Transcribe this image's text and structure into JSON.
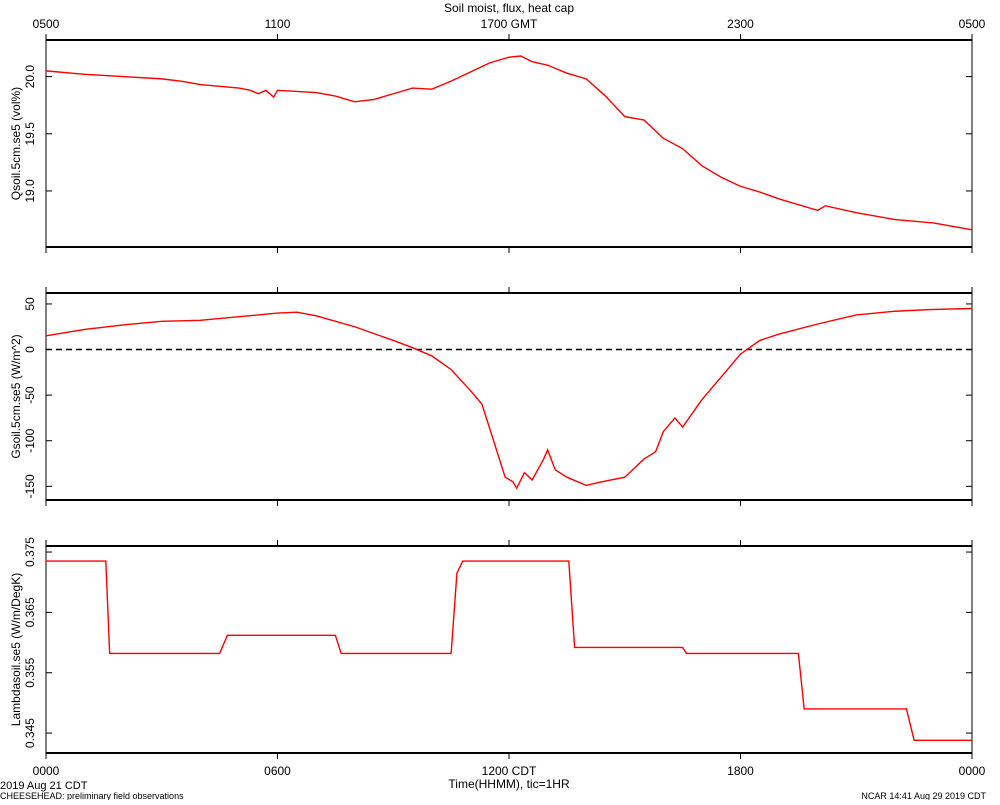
{
  "title": "Soil moist, flux, heat cap",
  "footer": [
    "2019 Aug 21 CDT",
    "CHEESEHEAD: preliminary field observations",
    "NCAR 14:41 Aug 29 2019 CDT"
  ],
  "chart_data": [
    {
      "type": "line",
      "ylabel": "Qsoil.5cm.se5 (vol%)",
      "xlim": [
        0,
        24
      ],
      "ylim": [
        18.51,
        20.32
      ],
      "yticks": [
        {
          "value": 20,
          "label": "20.0"
        },
        {
          "value": 19.5,
          "label": "19.5"
        },
        {
          "value": 19,
          "label": "19.0"
        }
      ],
      "x2ticks": [
        {
          "value": 0,
          "label": "0500"
        },
        {
          "value": 6,
          "label": "1100"
        },
        {
          "value": 12,
          "label": "1700 GMT"
        },
        {
          "value": 18,
          "label": "2300"
        },
        {
          "value": 24,
          "label": "0500"
        }
      ],
      "series": [
        {
          "color": "#ff0000",
          "x": [
            0,
            1,
            2,
            3,
            3.5,
            4,
            5,
            5.3,
            5.5,
            5.7,
            5.9,
            6,
            7,
            7.5,
            8,
            8.5,
            9,
            9.5,
            10,
            10.5,
            11,
            11.5,
            12,
            12.3,
            12.6,
            13,
            13.5,
            14,
            14.5,
            15,
            15.5,
            16,
            16.5,
            17,
            17.5,
            18,
            18.5,
            19,
            20,
            20.2,
            21,
            22,
            23,
            24
          ],
          "values": [
            20.05,
            20.02,
            20.0,
            19.98,
            19.96,
            19.93,
            19.9,
            19.88,
            19.85,
            19.88,
            19.82,
            19.88,
            19.86,
            19.83,
            19.78,
            19.8,
            19.85,
            19.9,
            19.89,
            19.96,
            20.04,
            20.12,
            20.17,
            20.18,
            20.13,
            20.1,
            20.03,
            19.98,
            19.83,
            19.65,
            19.62,
            19.46,
            19.37,
            19.22,
            19.12,
            19.04,
            18.99,
            18.93,
            18.83,
            18.87,
            18.81,
            18.75,
            18.72,
            18.66
          ]
        }
      ]
    },
    {
      "type": "line",
      "ylabel": "Gsoil.5cm.se5 (W/m^2)",
      "xlim": [
        0,
        24
      ],
      "ylim": [
        -165,
        62
      ],
      "yticks": [
        50,
        0,
        -50,
        -100,
        -150
      ],
      "reference_line": 0,
      "series": [
        {
          "color": "#ff0000",
          "x": [
            0,
            1,
            2,
            3,
            4,
            5,
            6,
            6.5,
            7,
            8,
            9,
            9.5,
            10,
            10.5,
            11,
            11.3,
            11.6,
            11.9,
            12.1,
            12.2,
            12.4,
            12.6,
            12.9,
            13,
            13.2,
            13.5,
            14,
            14.4,
            15,
            15.5,
            15.8,
            16,
            16.3,
            16.5,
            17,
            17.5,
            18,
            18.5,
            19,
            20,
            21,
            22,
            23,
            24
          ],
          "values": [
            15,
            22,
            27,
            31,
            32,
            36,
            40,
            41,
            37,
            25,
            10,
            2,
            -7,
            -22,
            -45,
            -60,
            -100,
            -140,
            -145,
            -152,
            -135,
            -143,
            -120,
            -110,
            -132,
            -140,
            -149,
            -145,
            -140,
            -120,
            -112,
            -90,
            -75,
            -85,
            -55,
            -30,
            -5,
            10,
            17,
            28,
            38,
            42,
            44,
            45
          ]
        }
      ]
    },
    {
      "type": "line",
      "ylabel": "Lambdasoil.se5 (W/m/DegK)",
      "xlabel": "Time(HHMM), tic=1HR",
      "xlim": [
        0,
        24
      ],
      "ylim": [
        0.3417,
        0.376
      ],
      "yticks": [
        0.375,
        0.365,
        0.355,
        0.345
      ],
      "xticks": [
        {
          "value": 0,
          "label": "0000"
        },
        {
          "value": 6,
          "label": "0600"
        },
        {
          "value": 12,
          "label": "1200 CDT"
        },
        {
          "value": 18,
          "label": "1800"
        },
        {
          "value": 24,
          "label": "0000"
        }
      ],
      "series": [
        {
          "color": "#ff0000",
          "x": [
            0,
            1.55,
            1.65,
            4.5,
            4.7,
            7.5,
            7.65,
            10.5,
            10.65,
            10.8,
            13.55,
            13.7,
            16.5,
            16.6,
            19.5,
            19.65,
            22.3,
            22.5,
            24
          ],
          "values": [
            0.3735,
            0.3735,
            0.3582,
            0.3582,
            0.3612,
            0.3612,
            0.3582,
            0.3582,
            0.3715,
            0.3735,
            0.3735,
            0.3592,
            0.3592,
            0.3582,
            0.3582,
            0.349,
            0.349,
            0.3438,
            0.3438
          ]
        }
      ]
    }
  ]
}
